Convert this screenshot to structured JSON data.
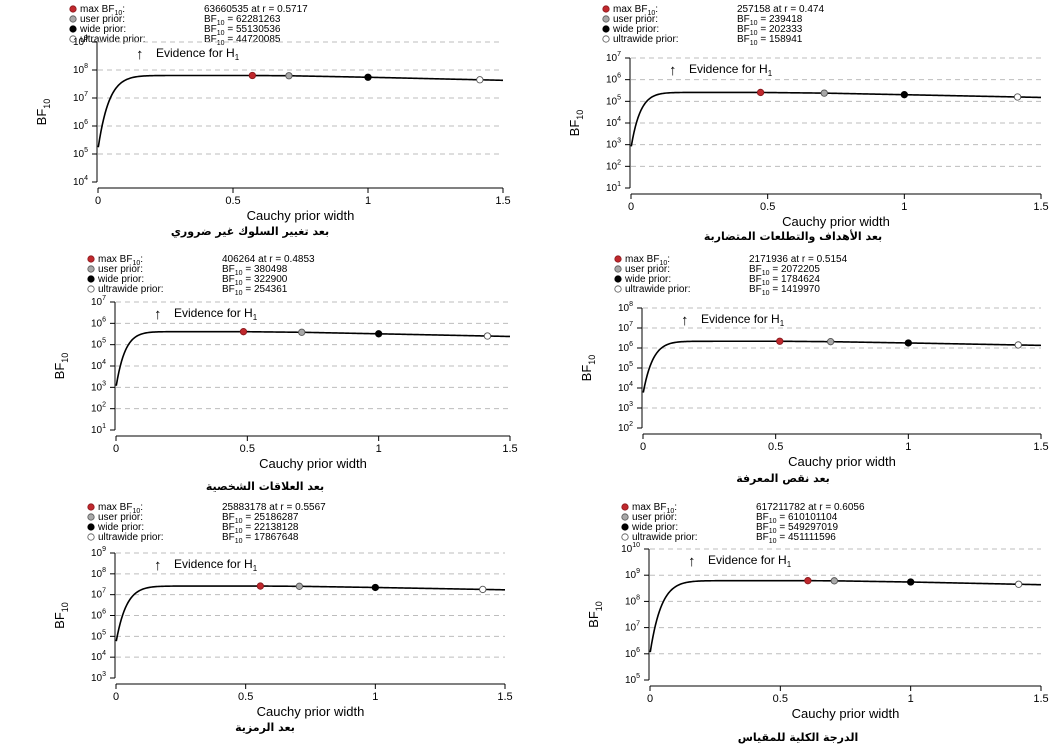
{
  "legend_labels": {
    "max": "max BF",
    "max_sub": "10",
    "max_suffix": ":",
    "user": "user prior:",
    "wide": "wide prior:",
    "ultrawide": "ultrawide prior:",
    "bf": "BF",
    "bf_sub": "10"
  },
  "evidence_label": "Evidence for H",
  "evidence_sub": "1",
  "colors": {
    "max": "#c0282d",
    "user": "#a8a8a8",
    "wide": "#000000",
    "ultrawide": "#ffffff",
    "curve": "#000000",
    "grid": "#bdbdbd"
  },
  "chart_data": [
    {
      "type": "line",
      "caption": "بعد تغيير السلوك غير ضروري",
      "xlabel": "Cauchy prior width",
      "ylabel": "BF",
      "ylabel_sub": "10",
      "x_ticks": [
        "0",
        "0.5",
        "1",
        "1.5"
      ],
      "xlim": [
        0,
        1.5
      ],
      "y_scale": "log10",
      "ylim_exp": [
        4,
        9
      ],
      "max": {
        "value": "63660535",
        "r": "0.5717"
      },
      "user": {
        "value": "62281263",
        "r": 0.7071
      },
      "wide": {
        "value": "55130536",
        "r": 1.0
      },
      "ultrawide": {
        "value": "44720085",
        "r": 1.4142
      },
      "curve_r0_value": 150000
    },
    {
      "type": "line",
      "caption": "بعد الأهداف والتطلعات المتضاربة",
      "xlabel": "Cauchy prior width",
      "ylabel": "BF",
      "ylabel_sub": "10",
      "x_ticks": [
        "0",
        "0.5",
        "1",
        "1.5"
      ],
      "xlim": [
        0,
        1.5
      ],
      "y_scale": "log10",
      "ylim_exp": [
        1,
        7
      ],
      "max": {
        "value": "257158",
        "r": "0.474"
      },
      "user": {
        "value": "239418",
        "r": 0.7071
      },
      "wide": {
        "value": "202333",
        "r": 1.0
      },
      "ultrawide": {
        "value": "158941",
        "r": 1.4142
      },
      "curve_r0_value": 700
    },
    {
      "type": "line",
      "caption": "بعد العلاقات الشخصية",
      "xlabel": "Cauchy prior width",
      "ylabel": "BF",
      "ylabel_sub": "10",
      "x_ticks": [
        "0",
        "0.5",
        "1",
        "1.5"
      ],
      "xlim": [
        0,
        1.5
      ],
      "y_scale": "log10",
      "ylim_exp": [
        1,
        7
      ],
      "max": {
        "value": "406264",
        "r": "0.4853"
      },
      "user": {
        "value": "380498",
        "r": 0.7071
      },
      "wide": {
        "value": "322900",
        "r": 1.0
      },
      "ultrawide": {
        "value": "254361",
        "r": 1.4142
      },
      "curve_r0_value": 1000
    },
    {
      "type": "line",
      "caption": "بعد نقص المعرفة",
      "xlabel": "Cauchy prior width",
      "ylabel": "BF",
      "ylabel_sub": "10",
      "x_ticks": [
        "0",
        "0.5",
        "1",
        "1.5"
      ],
      "xlim": [
        0,
        1.5
      ],
      "y_scale": "log10",
      "ylim_exp": [
        2,
        8
      ],
      "max": {
        "value": "2171936",
        "r": "0.5154"
      },
      "user": {
        "value": "2072205",
        "r": 0.7071
      },
      "wide": {
        "value": "1784624",
        "r": 1.0
      },
      "ultrawide": {
        "value": "1419970",
        "r": 1.4142
      },
      "curve_r0_value": 5000
    },
    {
      "type": "line",
      "caption": "بعد الرمزية",
      "xlabel": "Cauchy prior width",
      "ylabel": "BF",
      "ylabel_sub": "10",
      "x_ticks": [
        "0",
        "0.5",
        "1",
        "1.5"
      ],
      "xlim": [
        0,
        1.5
      ],
      "y_scale": "log10",
      "ylim_exp": [
        3,
        9
      ],
      "max": {
        "value": "25883178",
        "r": "0.5567"
      },
      "user": {
        "value": "25186287",
        "r": 0.7071
      },
      "wide": {
        "value": "22138128",
        "r": 1.0
      },
      "ultrawide": {
        "value": "17867648",
        "r": 1.4142
      },
      "curve_r0_value": 50000
    },
    {
      "type": "line",
      "caption": "الدرجة الكلية للمقياس",
      "xlabel": "Cauchy prior width",
      "ylabel": "BF",
      "ylabel_sub": "10",
      "x_ticks": [
        "0",
        "0.5",
        "1",
        "1.5"
      ],
      "xlim": [
        0,
        1.5
      ],
      "y_scale": "log10",
      "ylim_exp": [
        5,
        10
      ],
      "max": {
        "value": "617211782",
        "r": "0.6056"
      },
      "user": {
        "value": "610101104",
        "r": 0.7071
      },
      "wide": {
        "value": "549297019",
        "r": 1.0
      },
      "ultrawide": {
        "value": "451111596",
        "r": 1.4142
      },
      "curve_r0_value": 1000000
    }
  ]
}
